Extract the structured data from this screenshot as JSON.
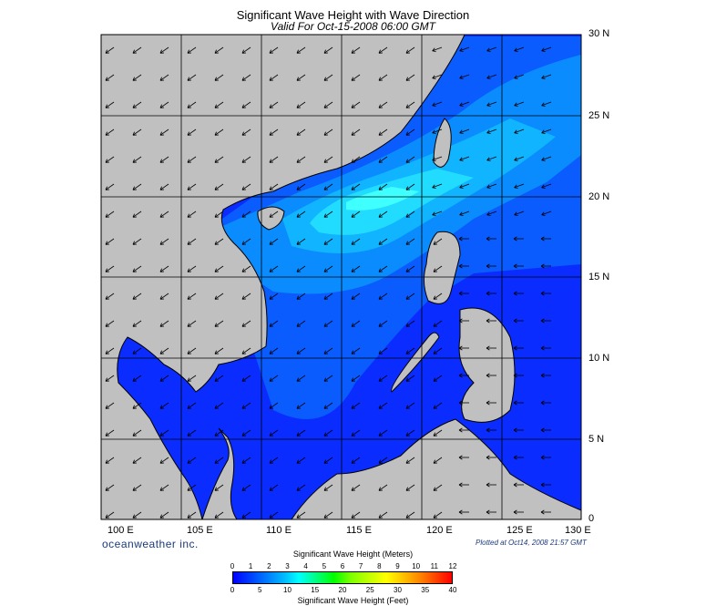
{
  "title": "Significant Wave Height with Wave Direction",
  "subtitle": "Valid For Oct-15-2008 06:00 GMT",
  "map": {
    "lon_range": [
      100,
      130
    ],
    "lat_range": [
      0,
      30
    ],
    "lat_labels": [
      "30 N",
      "25 N",
      "20 N",
      "15 N",
      "10 N",
      "5 N",
      "0"
    ],
    "lon_labels": [
      "100 E",
      "105 E",
      "110 E",
      "115 E",
      "120 E",
      "125 E",
      "130 E"
    ],
    "land_color": "#c0c0c0",
    "arrow_color": "#000000",
    "grid": true
  },
  "brand": "oceanweather inc.",
  "plotted": "Plotted at Oct14, 2008 21:57 GMT",
  "colorbar": {
    "title_top": "Significant Wave Height (Meters)",
    "title_bottom": "Significant Wave Height (Feet)",
    "meters_ticks": [
      "0",
      "1",
      "2",
      "3",
      "4",
      "5",
      "6",
      "7",
      "8",
      "9",
      "10",
      "11",
      "12"
    ],
    "feet_ticks": [
      "0",
      "5",
      "10",
      "15",
      "20",
      "25",
      "30",
      "35",
      "40"
    ]
  }
}
